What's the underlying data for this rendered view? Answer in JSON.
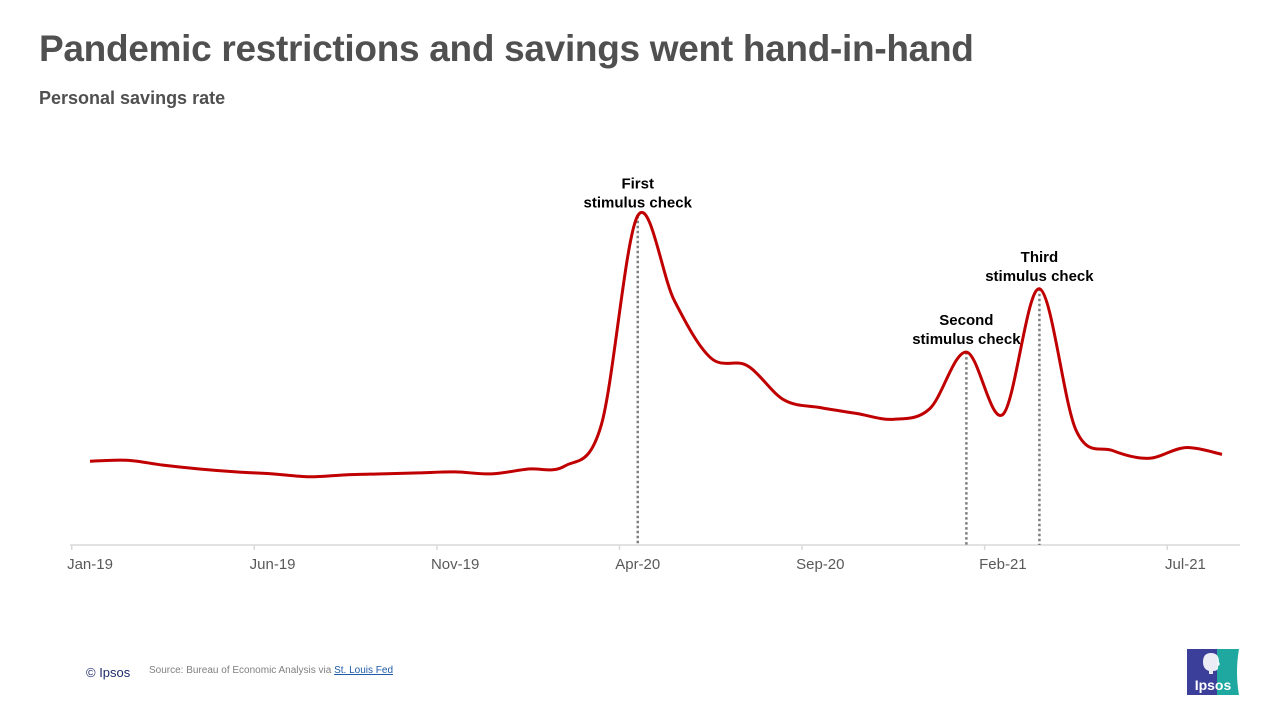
{
  "title": "Pandemic restrictions and savings went hand-in-hand",
  "subtitle": "Personal savings rate",
  "footer": {
    "copyright": "© Ipsos",
    "source_prefix": "Source: Bureau of Economic Analysis via ",
    "source_link": "St. Louis Fed"
  },
  "logo": {
    "text": "Ipsos",
    "colors": [
      "#3b3f9a",
      "#1fa8a0"
    ]
  },
  "chart_data": {
    "type": "line",
    "title": "Pandemic restrictions and savings went hand-in-hand",
    "subtitle": "Personal savings rate",
    "xlabel": "",
    "ylabel": "",
    "x": [
      "Jan-19",
      "Feb-19",
      "Mar-19",
      "Apr-19",
      "May-19",
      "Jun-19",
      "Jul-19",
      "Aug-19",
      "Sep-19",
      "Oct-19",
      "Nov-19",
      "Dec-19",
      "Jan-20",
      "Feb-20",
      "Mar-20",
      "Apr-20",
      "May-20",
      "Jun-20",
      "Jul-20",
      "Aug-20",
      "Sep-20",
      "Oct-20",
      "Nov-20",
      "Dec-20",
      "Jan-21",
      "Feb-21",
      "Mar-21",
      "Apr-21",
      "May-21",
      "Jun-21",
      "Jul-21",
      "Aug-21"
    ],
    "series": [
      {
        "color": "#c00000",
        "values": [
          8.6,
          8.7,
          8.2,
          7.8,
          7.5,
          7.3,
          7.0,
          7.2,
          7.3,
          7.4,
          7.5,
          7.3,
          7.8,
          8.1,
          12.3,
          33.8,
          25.1,
          19.2,
          18.4,
          14.9,
          14.1,
          13.5,
          12.9,
          14.0,
          19.8,
          13.4,
          26.3,
          11.8,
          9.7,
          8.9,
          10.0,
          9.3
        ]
      }
    ],
    "tick_labels": [
      "Jan-19",
      "Jun-19",
      "Nov-19",
      "Apr-20",
      "Sep-20",
      "Feb-21",
      "Jul-21"
    ],
    "ylim": [
      0,
      35
    ],
    "y_axis_visible": false,
    "grid": false,
    "annotations": [
      {
        "x": "Apr-20",
        "lines": [
          "First",
          "stimulus check"
        ]
      },
      {
        "x": "Jan-21",
        "lines": [
          "Second",
          "stimulus check"
        ]
      },
      {
        "x": "Mar-21",
        "lines": [
          "Third",
          "stimulus check"
        ]
      }
    ]
  }
}
